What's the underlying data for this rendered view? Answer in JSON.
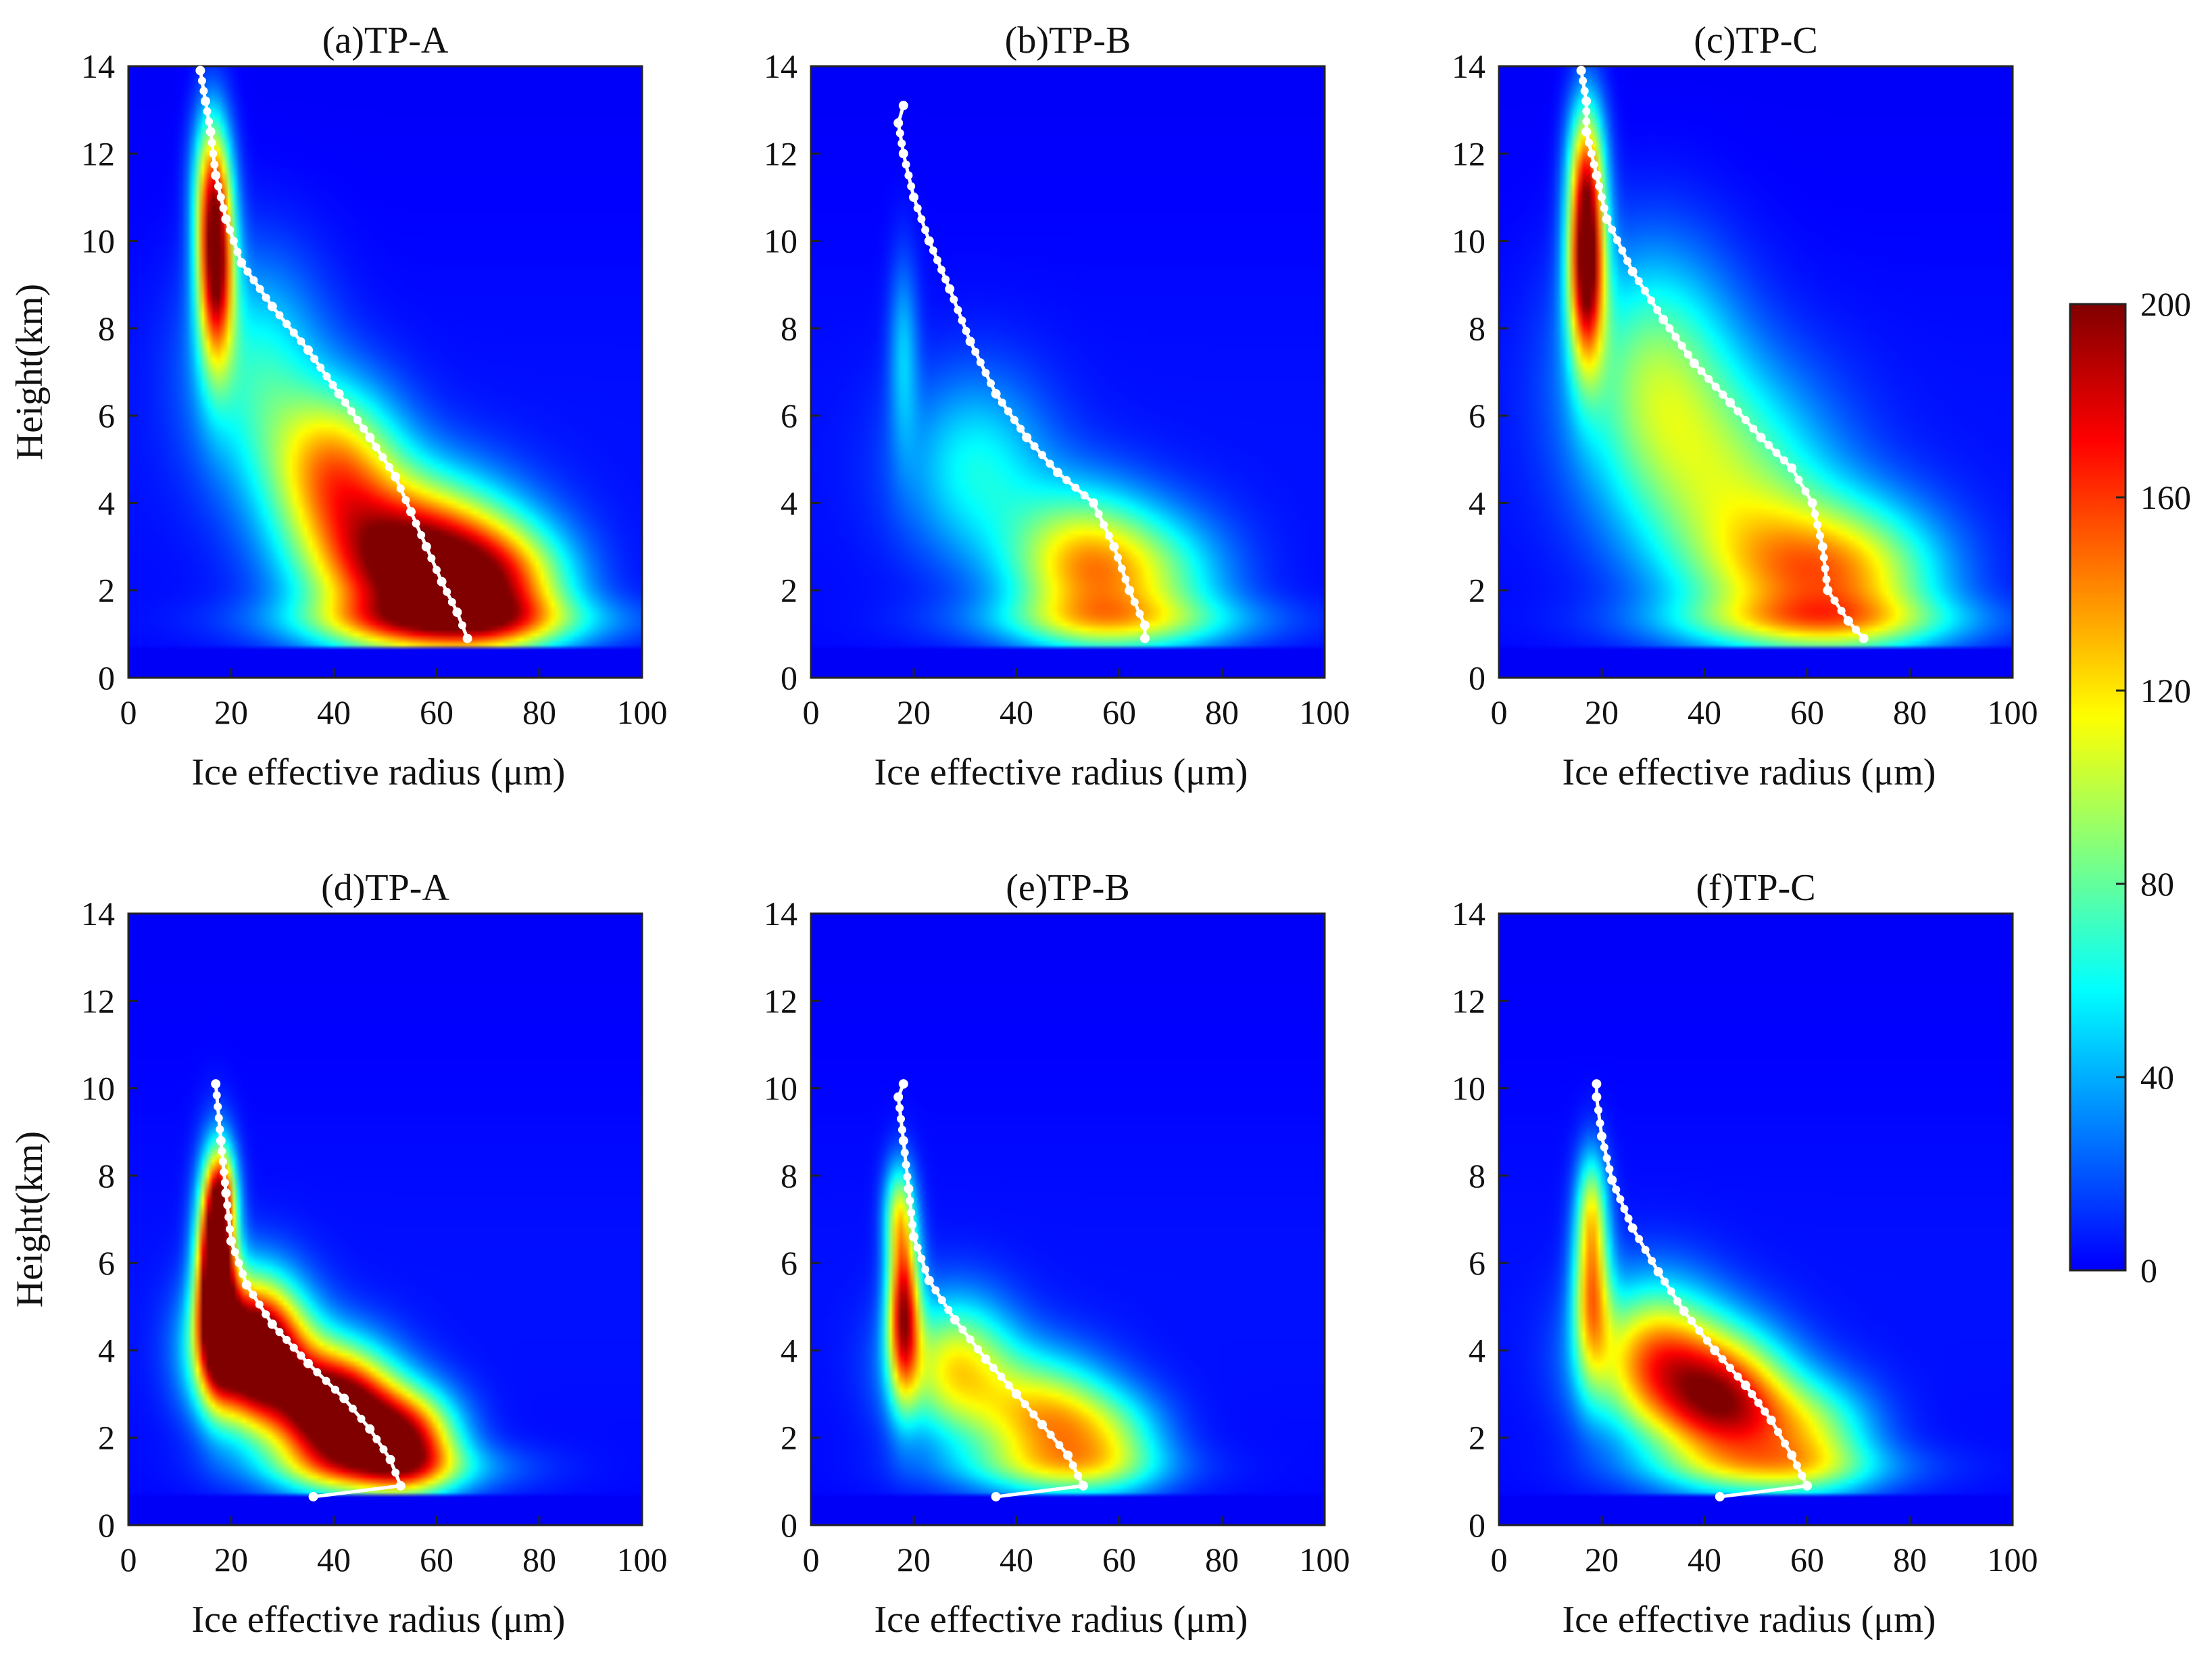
{
  "chart_data": [
    {
      "type": "heatmap",
      "title": "(a)TP-A",
      "xlabel": "Ice effective radius (μm)",
      "ylabel": "Height(km)",
      "xlim": [
        0,
        100
      ],
      "ylim": [
        0,
        14
      ],
      "xticks": [
        "0",
        "20",
        "40",
        "60",
        "80",
        "100"
      ],
      "yticks": [
        "0",
        "2",
        "4",
        "6",
        "8",
        "10",
        "12",
        "14"
      ],
      "density_blobs": [
        {
          "x": 17,
          "y": 9.5,
          "sx": 2.5,
          "sy": 1.6,
          "amp": 190
        },
        {
          "x": 16,
          "y": 11.5,
          "sx": 2.5,
          "sy": 1.2,
          "amp": 80
        },
        {
          "x": 25,
          "y": 7.0,
          "sx": 9,
          "sy": 1.8,
          "amp": 60
        },
        {
          "x": 40,
          "y": 4.8,
          "sx": 9,
          "sy": 1.3,
          "amp": 120
        },
        {
          "x": 55,
          "y": 2.6,
          "sx": 13,
          "sy": 1.3,
          "amp": 210
        },
        {
          "x": 72,
          "y": 2.0,
          "sx": 10,
          "sy": 1.0,
          "amp": 120
        },
        {
          "x": 62,
          "y": 1.3,
          "sx": 22,
          "sy": 0.4,
          "amp": 70
        }
      ],
      "mean_profile": {
        "radius": [
          66,
          64,
          61,
          58,
          55,
          52,
          47,
          41,
          35,
          28,
          22,
          19,
          17,
          16,
          15,
          14
        ],
        "height": [
          0.9,
          1.5,
          2.2,
          3.0,
          3.8,
          4.6,
          5.5,
          6.5,
          7.5,
          8.5,
          9.5,
          10.5,
          11.5,
          12.5,
          13.2,
          13.9
        ]
      }
    },
    {
      "type": "heatmap",
      "title": "(b)TP-B",
      "xlabel": "Ice effective radius (μm)",
      "ylabel": "",
      "xlim": [
        0,
        100
      ],
      "ylim": [
        0,
        14
      ],
      "xticks": [
        "0",
        "20",
        "40",
        "60",
        "80",
        "100"
      ],
      "yticks": [
        "0",
        "2",
        "4",
        "6",
        "8",
        "10",
        "12",
        "14"
      ],
      "density_blobs": [
        {
          "x": 18,
          "y": 7.5,
          "sx": 2,
          "sy": 1.5,
          "amp": 40
        },
        {
          "x": 32,
          "y": 4.8,
          "sx": 10,
          "sy": 1.5,
          "amp": 55
        },
        {
          "x": 52,
          "y": 2.6,
          "sx": 10,
          "sy": 1.2,
          "amp": 105
        },
        {
          "x": 66,
          "y": 2.2,
          "sx": 11,
          "sy": 1.1,
          "amp": 70
        },
        {
          "x": 60,
          "y": 1.3,
          "sx": 20,
          "sy": 0.4,
          "amp": 50
        }
      ],
      "mean_profile": {
        "radius": [
          65,
          65,
          62,
          59,
          55,
          48,
          42,
          36,
          31,
          27,
          23,
          20,
          18,
          17,
          18
        ],
        "height": [
          0.9,
          1.2,
          2.0,
          3.0,
          4.0,
          4.7,
          5.5,
          6.5,
          7.7,
          8.9,
          10.0,
          11.0,
          12.0,
          12.7,
          13.1
        ]
      }
    },
    {
      "type": "heatmap",
      "title": "(c)TP-C",
      "xlabel": "Ice effective radius (μm)",
      "ylabel": "",
      "xlim": [
        0,
        100
      ],
      "ylim": [
        0,
        14
      ],
      "xticks": [
        "0",
        "20",
        "40",
        "60",
        "80",
        "100"
      ],
      "yticks": [
        "0",
        "2",
        "4",
        "6",
        "8",
        "10",
        "12",
        "14"
      ],
      "density_blobs": [
        {
          "x": 17,
          "y": 9.5,
          "sx": 2.5,
          "sy": 1.6,
          "amp": 200
        },
        {
          "x": 17,
          "y": 11.8,
          "sx": 2.5,
          "sy": 1.2,
          "amp": 90
        },
        {
          "x": 30,
          "y": 7.0,
          "sx": 11,
          "sy": 2.0,
          "amp": 80
        },
        {
          "x": 45,
          "y": 4.5,
          "sx": 14,
          "sy": 1.8,
          "amp": 75
        },
        {
          "x": 58,
          "y": 2.4,
          "sx": 14,
          "sy": 1.2,
          "amp": 95
        },
        {
          "x": 72,
          "y": 2.2,
          "sx": 12,
          "sy": 1.2,
          "amp": 60
        },
        {
          "x": 62,
          "y": 1.3,
          "sx": 22,
          "sy": 0.4,
          "amp": 55
        }
      ],
      "mean_profile": {
        "radius": [
          71,
          68,
          64,
          63,
          61,
          57,
          51,
          45,
          38,
          32,
          26,
          21,
          19,
          17,
          17,
          16
        ],
        "height": [
          0.9,
          1.3,
          2.0,
          3.0,
          4.0,
          4.8,
          5.5,
          6.3,
          7.2,
          8.2,
          9.3,
          10.5,
          11.5,
          12.5,
          13.2,
          13.9
        ]
      }
    },
    {
      "type": "heatmap",
      "title": "(d)TP-A",
      "xlabel": "Ice effective radius (μm)",
      "ylabel": "Height(km)",
      "xlim": [
        0,
        100
      ],
      "ylim": [
        0,
        14
      ],
      "xticks": [
        "0",
        "20",
        "40",
        "60",
        "80",
        "100"
      ],
      "yticks": [
        "0",
        "2",
        "4",
        "6",
        "8",
        "10",
        "12",
        "14"
      ],
      "density_blobs": [
        {
          "x": 17,
          "y": 5.8,
          "sx": 2.5,
          "sy": 1.5,
          "amp": 260
        },
        {
          "x": 24,
          "y": 4.0,
          "sx": 7,
          "sy": 1.1,
          "amp": 260
        },
        {
          "x": 40,
          "y": 2.6,
          "sx": 8,
          "sy": 1.0,
          "amp": 240
        },
        {
          "x": 54,
          "y": 1.9,
          "sx": 7,
          "sy": 0.8,
          "amp": 170
        },
        {
          "x": 18,
          "y": 7.6,
          "sx": 2,
          "sy": 0.8,
          "amp": 100
        },
        {
          "x": 50,
          "y": 1.3,
          "sx": 16,
          "sy": 0.4,
          "amp": 60
        }
      ],
      "mean_profile": {
        "radius": [
          36,
          53,
          51,
          47,
          42,
          35,
          28,
          23,
          20,
          19,
          18,
          17
        ],
        "height": [
          0.65,
          0.9,
          1.5,
          2.2,
          2.9,
          3.7,
          4.6,
          5.5,
          6.5,
          7.6,
          8.8,
          10.1
        ]
      }
    },
    {
      "type": "heatmap",
      "title": "(e)TP-B",
      "xlabel": "Ice effective radius (μm)",
      "ylabel": "",
      "xlim": [
        0,
        100
      ],
      "ylim": [
        0,
        14
      ],
      "xticks": [
        "0",
        "20",
        "40",
        "60",
        "80",
        "100"
      ],
      "yticks": [
        "0",
        "2",
        "4",
        "6",
        "8",
        "10",
        "12",
        "14"
      ],
      "density_blobs": [
        {
          "x": 18,
          "y": 5.0,
          "sx": 2.2,
          "sy": 1.4,
          "amp": 170
        },
        {
          "x": 28,
          "y": 3.6,
          "sx": 8,
          "sy": 1.1,
          "amp": 110
        },
        {
          "x": 45,
          "y": 2.4,
          "sx": 9,
          "sy": 1.0,
          "amp": 115
        },
        {
          "x": 58,
          "y": 1.9,
          "sx": 8,
          "sy": 0.8,
          "amp": 70
        },
        {
          "x": 17,
          "y": 7.2,
          "sx": 2,
          "sy": 0.8,
          "amp": 70
        },
        {
          "x": 48,
          "y": 1.3,
          "sx": 16,
          "sy": 0.4,
          "amp": 40
        }
      ],
      "mean_profile": {
        "radius": [
          36,
          53,
          50,
          45,
          40,
          34,
          28,
          23,
          20,
          19,
          18,
          17,
          18
        ],
        "height": [
          0.65,
          0.9,
          1.6,
          2.3,
          3.0,
          3.8,
          4.7,
          5.6,
          6.6,
          7.7,
          8.8,
          9.8,
          10.1
        ]
      }
    },
    {
      "type": "heatmap",
      "title": "(f)TP-C",
      "xlabel": "Ice effective radius (μm)",
      "ylabel": "",
      "xlim": [
        0,
        100
      ],
      "ylim": [
        0,
        14
      ],
      "xticks": [
        "0",
        "20",
        "40",
        "60",
        "80",
        "100"
      ],
      "yticks": [
        "0",
        "2",
        "4",
        "6",
        "8",
        "10",
        "12",
        "14"
      ],
      "density_blobs": [
        {
          "x": 18,
          "y": 5.5,
          "sx": 2.5,
          "sy": 1.4,
          "amp": 120
        },
        {
          "x": 30,
          "y": 3.8,
          "sx": 9,
          "sy": 1.2,
          "amp": 130
        },
        {
          "x": 44,
          "y": 2.8,
          "sx": 9,
          "sy": 1.1,
          "amp": 160
        },
        {
          "x": 60,
          "y": 2.0,
          "sx": 9,
          "sy": 0.9,
          "amp": 90
        },
        {
          "x": 18,
          "y": 7.4,
          "sx": 2,
          "sy": 0.9,
          "amp": 60
        },
        {
          "x": 54,
          "y": 1.3,
          "sx": 18,
          "sy": 0.4,
          "amp": 45
        }
      ],
      "mean_profile": {
        "radius": [
          43,
          60,
          57,
          53,
          48,
          42,
          36,
          31,
          26,
          22,
          20,
          19,
          19
        ],
        "height": [
          0.65,
          0.9,
          1.6,
          2.4,
          3.2,
          4.0,
          4.9,
          5.8,
          6.8,
          7.9,
          8.9,
          9.8,
          10.1
        ]
      }
    }
  ],
  "colorbar": {
    "ticks": [
      "0",
      "40",
      "80",
      "120",
      "160",
      "200"
    ],
    "range": [
      0,
      200
    ],
    "colormap": "jet"
  }
}
